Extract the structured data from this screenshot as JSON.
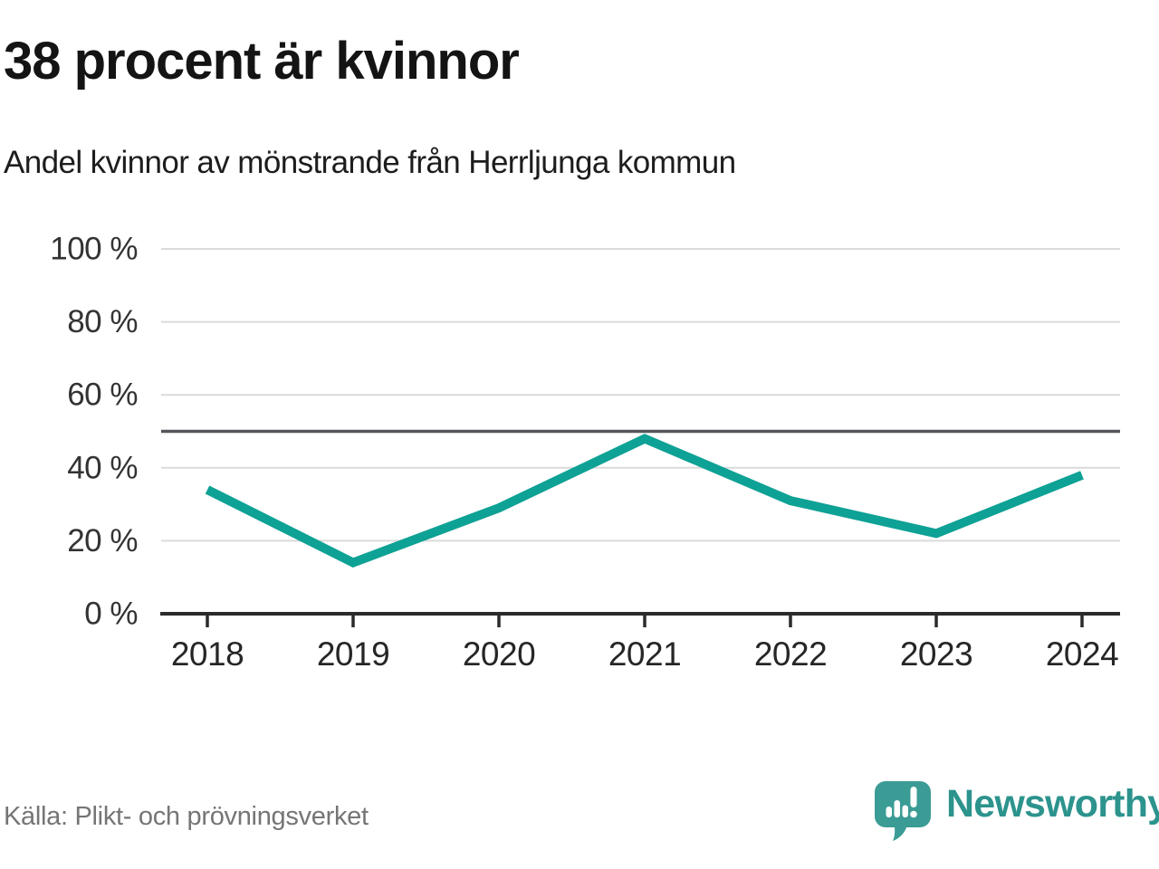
{
  "header": {
    "title": "38 procent är kvinnor",
    "subtitle": "Andel kvinnor av mönstrande från Herrljunga kommun"
  },
  "chart_data": {
    "type": "line",
    "title": "38 procent är kvinnor",
    "subtitle": "Andel kvinnor av mönstrande från Herrljunga kommun",
    "categories": [
      "2018",
      "2019",
      "2020",
      "2021",
      "2022",
      "2023",
      "2024"
    ],
    "values": [
      34,
      14,
      29,
      48,
      31,
      22,
      38
    ],
    "unit": "%",
    "xlabel": "",
    "ylabel": "",
    "ylim": [
      0,
      100
    ],
    "yticks": [
      0,
      20,
      40,
      60,
      80,
      100
    ],
    "ytick_labels": [
      "0 %",
      "20 %",
      "40 %",
      "60 %",
      "80 %",
      "100 %"
    ],
    "reference_line": 50,
    "grid": true,
    "legend": "none"
  },
  "footer": {
    "source": "Källa: Plikt- och prövningsverket",
    "brand": "Newsworthy"
  },
  "colors": {
    "line": "#0ea195",
    "grid": "#dadada",
    "reference": "#55565a",
    "axis": "#2b2b2b",
    "tick_text": "#262626",
    "ylabel_text": "#333333",
    "title_text": "#141414",
    "source_text": "#757575",
    "logo_bubble": "#3b9c95",
    "brand_text": "#2c938d"
  }
}
